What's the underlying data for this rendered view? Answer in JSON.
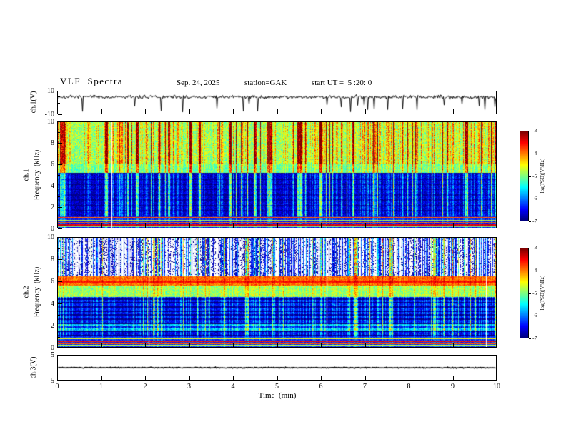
{
  "header": {
    "title": "VLF  Spectra",
    "date": "Sep. 24, 2025",
    "station": "station=GAK",
    "start_ut": "start UT =  5 :20: 0"
  },
  "xaxis": {
    "label": "Time  (min)",
    "lim": [
      0,
      10
    ],
    "ticks": [
      0,
      1,
      2,
      3,
      4,
      5,
      6,
      7,
      8,
      9,
      10
    ]
  },
  "colorbar": {
    "label": "log(PSD)(V²/Hz)",
    "lim": [
      -3,
      -7
    ],
    "ticks": [
      -3,
      -4,
      -5,
      -6,
      -7
    ]
  },
  "chart_data": [
    {
      "id": "ch1_wave",
      "type": "line",
      "ylabel": "ch.1(V)",
      "ylim": [
        -10,
        10
      ],
      "yticks": [
        10,
        -10
      ],
      "yticks_minor": [
        5,
        0,
        -5
      ],
      "baseline": 5,
      "noise_amp": 1.6,
      "spike_prob": 0.04,
      "spike_min": -9,
      "spike_max": -1,
      "line_width": 1,
      "seed": 7,
      "description": "Noisy ch.1 voltage trace around +5 V with frequent downward impulse spikes reaching toward -9 V"
    },
    {
      "id": "ch1_spec",
      "type": "heatmap",
      "ylabel_ch": "ch.1",
      "ylabel_freq": "Frequency  (kHz)",
      "ylim": [
        0,
        10
      ],
      "yticks": [
        0,
        2,
        4,
        6,
        8,
        10
      ],
      "yticks_minor": [
        1,
        3,
        5,
        7,
        9
      ],
      "zlim": [
        -7,
        -3
      ],
      "seed": 101,
      "gap_prob": 0.007,
      "burst": {
        "p_strong": 0.1,
        "p_follow": 0.5,
        "p_mid": 0.3,
        "strong_min": 1.0,
        "strong_max": 1.7
      },
      "bands": [
        {
          "f0": 6.0,
          "f1": 10.01,
          "base": -5.0,
          "noise": 0.45,
          "burst": 1.5
        },
        {
          "f0": 5.2,
          "f1": 6.0,
          "base": -5.2,
          "noise": 0.35,
          "burst": 1.0
        },
        {
          "f0": 1.05,
          "f1": 5.2,
          "base": -6.85,
          "noise": 0.3,
          "burst": 1.25
        },
        {
          "f0": 0.0,
          "f1": 1.05,
          "base": -6.5,
          "noise": 0.25,
          "burst": 0.4
        }
      ],
      "stripes": {
        "f0": 1.05,
        "f1": 5.2,
        "period": 0.5,
        "width": 0.12,
        "delta": -0.3
      },
      "hlines": [
        {
          "f": 0.1,
          "w": 0.1,
          "v": -4.9
        },
        {
          "f": 0.28,
          "w": 0.12,
          "v": -3.5
        },
        {
          "f": 0.5,
          "w": 0.1,
          "v": -4.0
        },
        {
          "f": 0.72,
          "w": 0.1,
          "v": -4.8
        },
        {
          "f": 0.95,
          "w": 0.12,
          "v": -3.9
        }
      ],
      "features": [
        "6-10 kHz: green background with dense vertical red/orange burst streaks",
        "5.2-6 kHz: green band",
        "1-5.2 kHz: dark blue/black region with vertical blue-cyan streaks",
        "0-1 kHz: bright horizontal harmonic lines (green/red/yellow)"
      ]
    },
    {
      "id": "ch2_spec",
      "type": "heatmap",
      "ylabel_ch": "ch.2",
      "ylabel_freq": "Frequency  (kHz)",
      "ylim": [
        0,
        10
      ],
      "yticks": [
        0,
        2,
        4,
        6,
        8,
        10
      ],
      "yticks_minor": [
        1,
        3,
        5,
        7,
        9
      ],
      "zlim": [
        -7,
        -3
      ],
      "seed": 202,
      "gap_prob": 0.005,
      "burst": {
        "p_strong": 0.12,
        "p_follow": 0.45,
        "p_mid": 0.35,
        "strong_min": 0.9,
        "strong_max": 1.8
      },
      "bands": [
        {
          "f0": 6.45,
          "f1": 10.01,
          "base": -7.5,
          "noise": 0.4,
          "burst": 1.9,
          "white": true
        },
        {
          "f0": 5.6,
          "f1": 6.45,
          "base": -4.0,
          "noise": 0.3,
          "burst": 0.25
        },
        {
          "f0": 4.6,
          "f1": 5.6,
          "base": -5.0,
          "noise": 0.35,
          "burst": 0.5
        },
        {
          "f0": 2.1,
          "f1": 4.6,
          "base": -6.6,
          "noise": 0.3,
          "burst": 1.1
        },
        {
          "f0": 1.5,
          "f1": 2.1,
          "base": -5.9,
          "noise": 0.35,
          "burst": 0.9
        },
        {
          "f0": 1.0,
          "f1": 1.5,
          "base": -6.7,
          "noise": 0.3,
          "burst": 1.0
        },
        {
          "f0": 0.0,
          "f1": 1.0,
          "base": -6.4,
          "noise": 0.25,
          "burst": 0.3
        }
      ],
      "stripes": {
        "f0": 1.0,
        "f1": 4.6,
        "period": 0.37,
        "width": 0.13,
        "delta": -0.75
      },
      "hlines": [
        {
          "f": 6.0,
          "w": 0.22,
          "v": -3.6
        },
        {
          "f": 0.12,
          "w": 0.1,
          "v": -4.8
        },
        {
          "f": 0.32,
          "w": 0.12,
          "v": -3.9
        },
        {
          "f": 0.55,
          "w": 0.12,
          "v": -3.6
        },
        {
          "f": 0.78,
          "w": 0.1,
          "v": -4.6
        }
      ],
      "features": [
        "6.5-10 kHz: white background with vertical blue/cyan/green streaks",
        "5.6-6.4 kHz: continuous yellow-orange band centered near 6 kHz",
        "4.6-5.6 kHz: green band",
        "1-4.6 kHz: blue region with dark horizontal stripes and cyan streaks",
        "0-1 kHz: bright horizontal harmonic lines"
      ]
    },
    {
      "id": "ch3_wave",
      "type": "line",
      "ylabel": "ch.3(V)",
      "ylim": [
        -5,
        5
      ],
      "yticks": [
        5,
        -5
      ],
      "yticks_minor": [
        0
      ],
      "baseline": 0,
      "noise_amp": 0.22,
      "spike_prob": 0,
      "spike_min": 0,
      "spike_max": 0,
      "line_width": 1.4,
      "seed": 9,
      "description": "Flat dense black ch.3 trace at 0 V across the full 10 minutes"
    }
  ]
}
